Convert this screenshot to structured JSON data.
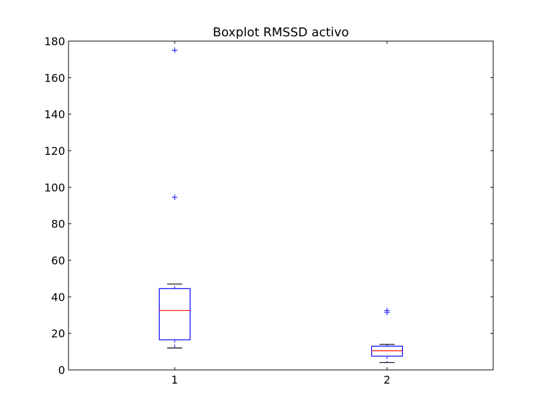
{
  "chart_data": {
    "type": "boxplot",
    "title": "Boxplot RMSSD activo",
    "xlabel": "",
    "ylabel": "",
    "ylim": [
      0,
      180
    ],
    "yticks": [
      0,
      20,
      40,
      60,
      80,
      100,
      120,
      140,
      160,
      180
    ],
    "categories": [
      "1",
      "2"
    ],
    "grid": false,
    "colors": {
      "box": "#0000ff",
      "median": "#ff0000",
      "whisker": "#000000",
      "flier": "#0000ff"
    },
    "boxes": [
      {
        "label": "1",
        "whisker_low": 12,
        "q1": 16.5,
        "median": 32.5,
        "q3": 44.5,
        "whisker_high": 47,
        "fliers": [
          94.5,
          175
        ]
      },
      {
        "label": "2",
        "whisker_low": 4,
        "q1": 7.5,
        "median": 10.5,
        "q3": 13,
        "whisker_high": 14,
        "fliers": [
          31.5,
          32.5
        ]
      }
    ]
  }
}
